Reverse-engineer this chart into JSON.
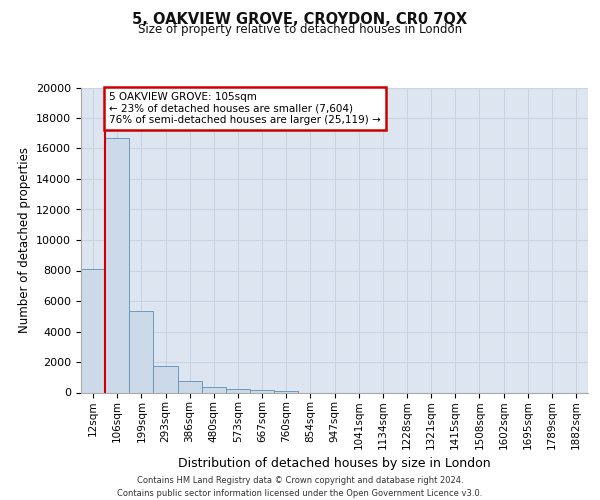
{
  "title_line1": "5, OAKVIEW GROVE, CROYDON, CR0 7QX",
  "title_line2": "Size of property relative to detached houses in London",
  "xlabel": "Distribution of detached houses by size in London",
  "ylabel": "Number of detached properties",
  "categories": [
    "12sqm",
    "106sqm",
    "199sqm",
    "293sqm",
    "386sqm",
    "480sqm",
    "573sqm",
    "667sqm",
    "760sqm",
    "854sqm",
    "947sqm",
    "1041sqm",
    "1134sqm",
    "1228sqm",
    "1321sqm",
    "1415sqm",
    "1508sqm",
    "1602sqm",
    "1695sqm",
    "1789sqm",
    "1882sqm"
  ],
  "bar_heights": [
    8100,
    16700,
    5350,
    1750,
    750,
    350,
    230,
    160,
    130,
    0,
    0,
    0,
    0,
    0,
    0,
    0,
    0,
    0,
    0,
    0,
    0
  ],
  "bar_color": "#ccd9e8",
  "bar_edge_color": "#6a9abf",
  "bar_edge_width": 0.7,
  "vline_color": "#cc0000",
  "ylim": [
    0,
    20000
  ],
  "yticks": [
    0,
    2000,
    4000,
    6000,
    8000,
    10000,
    12000,
    14000,
    16000,
    18000,
    20000
  ],
  "annotation_text": "5 OAKVIEW GROVE: 105sqm\n← 23% of detached houses are smaller (7,604)\n76% of semi-detached houses are larger (25,119) →",
  "annotation_box_color": "#ffffff",
  "annotation_border_color": "#cc0000",
  "footer_line1": "Contains HM Land Registry data © Crown copyright and database right 2024.",
  "footer_line2": "Contains public sector information licensed under the Open Government Licence v3.0.",
  "grid_color": "#c8d4e4",
  "background_color": "#dde5f0"
}
